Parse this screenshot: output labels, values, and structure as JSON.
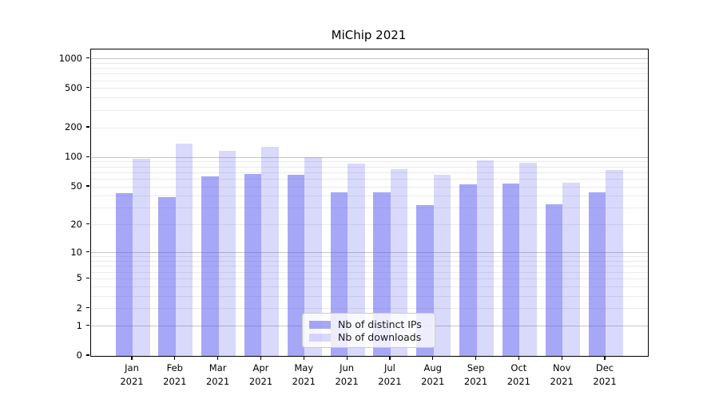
{
  "title": "MiChip 2021",
  "chart_data": {
    "type": "bar",
    "title": "MiChip 2021",
    "categories": [
      "Jan 2021",
      "Feb 2021",
      "Mar 2021",
      "Apr 2021",
      "May 2021",
      "Jun 2021",
      "Jul 2021",
      "Aug 2021",
      "Sep 2021",
      "Oct 2021",
      "Nov 2021",
      "Dec 2021"
    ],
    "series": [
      {
        "name": "Nb of distinct IPs",
        "values": [
          43,
          39,
          64,
          68,
          66,
          44,
          44,
          32,
          53,
          54,
          33,
          44
        ]
      },
      {
        "name": "Nb of downloads",
        "values": [
          96,
          137,
          116,
          128,
          100,
          86,
          76,
          66,
          93,
          88,
          55,
          75
        ]
      }
    ],
    "yscale": "log1p",
    "ylim": [
      0,
      1240
    ],
    "ytick_labels": [
      "1000",
      "500",
      "200",
      "100",
      "50",
      "20",
      "10",
      "5",
      "2",
      "1",
      "0"
    ],
    "grid": true,
    "legend_position": "lower center"
  },
  "colors": {
    "series_dark": "rgba(80,80,240,0.5)",
    "series_light": "rgba(80,80,240,0.22)",
    "grid_major": "#c6c6c6",
    "grid_minor": "#ebebeb",
    "axis": "#000000"
  }
}
